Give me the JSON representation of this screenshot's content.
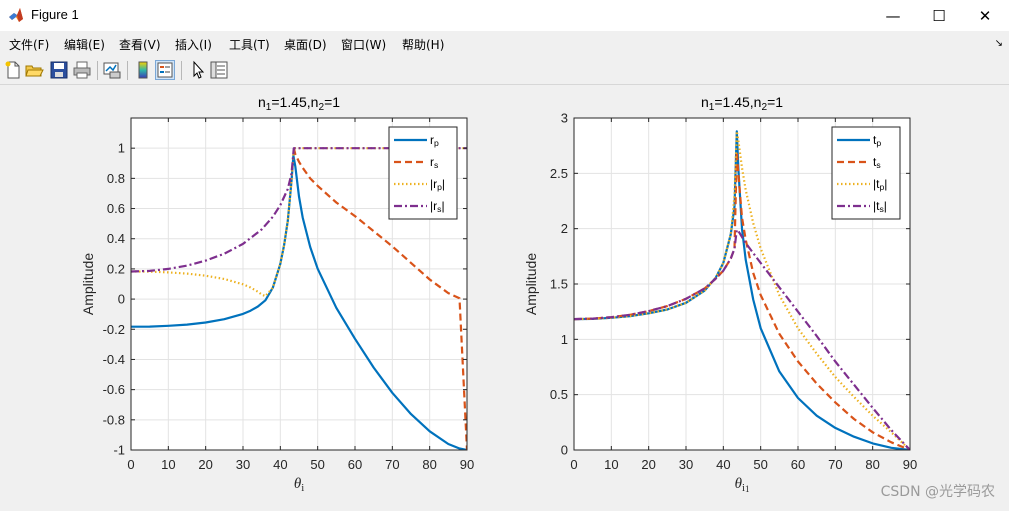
{
  "window": {
    "title": "Figure 1",
    "minimize_glyph": "—",
    "maximize_glyph": "☐",
    "close_glyph": "✕"
  },
  "menubar": {
    "items": [
      "文件(F)",
      "编辑(E)",
      "查看(V)",
      "插入(I)",
      "工具(T)",
      "桌面(D)",
      "窗口(W)",
      "帮助(H)"
    ],
    "collapse_glyph": "↘"
  },
  "toolbar": {
    "buttons": [
      "new-figure-icon",
      "open-file-icon",
      "save-icon",
      "print-icon",
      "link-plot-icon",
      "insert-colorbar-icon",
      "insert-legend-icon",
      "edit-plot-arrow-icon",
      "property-inspector-icon"
    ],
    "active": "insert-legend-icon"
  },
  "watermark": "CSDN @光学码农",
  "chart_data": [
    {
      "type": "line",
      "title": {
        "text": "n=1.45,n=1",
        "rich": [
          [
            "n",
            ""
          ],
          [
            "1",
            "sub"
          ],
          [
            "=1.45,n",
            ""
          ],
          [
            "2",
            "sub"
          ],
          [
            "=1",
            ""
          ]
        ]
      },
      "xlabel": {
        "rich": [
          [
            "θ",
            "italic"
          ],
          [
            "i",
            "sub"
          ]
        ]
      },
      "ylabel": "Amplitude",
      "xlim": [
        0,
        90
      ],
      "ylim": [
        -1,
        1.2
      ],
      "xticks": [
        0,
        10,
        20,
        30,
        40,
        50,
        60,
        70,
        80,
        90
      ],
      "yticks": [
        -1,
        -0.8,
        -0.6,
        -0.4,
        -0.2,
        0,
        0.2,
        0.4,
        0.6,
        0.8,
        1
      ],
      "ytick_labels": [
        "-1",
        "-0.8",
        "-0.6",
        "-0.4",
        "-0.2",
        "0",
        "0.2",
        "0.4",
        "0.6",
        "0.8",
        "1"
      ],
      "grid": true,
      "legend": "top-right",
      "series": [
        {
          "name": "rp",
          "legend_rich": [
            [
              "r",
              ""
            ],
            [
              "p",
              "sub"
            ]
          ],
          "color": "#0072bd",
          "style": "solid",
          "x": [
            0,
            5,
            10,
            15,
            20,
            25,
            30,
            32,
            34,
            36,
            38,
            40,
            41,
            42,
            43,
            43.5,
            44,
            45,
            46,
            48,
            50,
            55,
            60,
            65,
            70,
            75,
            80,
            85,
            88,
            90
          ],
          "y": [
            -0.183,
            -0.182,
            -0.177,
            -0.169,
            -0.155,
            -0.133,
            -0.098,
            -0.077,
            -0.049,
            -0.008,
            0.077,
            0.233,
            0.357,
            0.519,
            0.781,
            0.95,
            0.88,
            0.68,
            0.54,
            0.345,
            0.201,
            -0.058,
            -0.263,
            -0.454,
            -0.621,
            -0.762,
            -0.876,
            -0.96,
            -0.99,
            -1
          ]
        },
        {
          "name": "rs",
          "legend_rich": [
            [
              "r",
              ""
            ],
            [
              "s",
              "sub"
            ]
          ],
          "color": "#d95319",
          "style": "dashed",
          "x": [
            43.6,
            44,
            45,
            46,
            48,
            50,
            55,
            60,
            65,
            70,
            75,
            80,
            85,
            88,
            90
          ],
          "y": [
            1,
            0.96,
            0.91,
            0.87,
            0.8,
            0.75,
            0.64,
            0.55,
            0.45,
            0.35,
            0.24,
            0.13,
            0.04,
            0.005,
            -1
          ]
        },
        {
          "name": "|rp|",
          "legend_rich": [
            [
              "|r",
              ""
            ],
            [
              "p",
              "sub"
            ],
            [
              "|",
              ""
            ]
          ],
          "color": "#edb120",
          "style": "dotted",
          "x": [
            0,
            5,
            10,
            15,
            20,
            25,
            30,
            32,
            34,
            35,
            36,
            38,
            40,
            41,
            42,
            43,
            43.6,
            44,
            90
          ],
          "y": [
            0.183,
            0.182,
            0.177,
            0.169,
            0.155,
            0.133,
            0.098,
            0.077,
            0.049,
            0.03,
            0.02,
            0.077,
            0.233,
            0.357,
            0.519,
            0.781,
            1,
            1,
            1
          ]
        },
        {
          "name": "|rs|",
          "legend_rich": [
            [
              "|r",
              ""
            ],
            [
              "s",
              "sub"
            ],
            [
              "|",
              ""
            ]
          ],
          "color": "#7e2f8e",
          "style": "dashdot",
          "x": [
            0,
            5,
            10,
            15,
            20,
            25,
            30,
            35,
            38,
            40,
            42,
            43,
            43.6,
            44,
            90
          ],
          "y": [
            0.183,
            0.187,
            0.2,
            0.222,
            0.255,
            0.301,
            0.366,
            0.462,
            0.546,
            0.622,
            0.73,
            0.83,
            1,
            1,
            1
          ]
        }
      ]
    },
    {
      "type": "line",
      "title": {
        "text": "n=1.45,n=1",
        "rich": [
          [
            "n",
            ""
          ],
          [
            "1",
            "sub"
          ],
          [
            "=1.45,n",
            ""
          ],
          [
            "2",
            "sub"
          ],
          [
            "=1",
            ""
          ]
        ]
      },
      "xlabel": {
        "rich": [
          [
            "θ",
            "italic"
          ],
          [
            "i",
            "sub"
          ],
          [
            "1",
            "subsub"
          ]
        ]
      },
      "ylabel": "Amplitude",
      "xlim": [
        0,
        90
      ],
      "ylim": [
        0,
        3
      ],
      "xticks": [
        0,
        10,
        20,
        30,
        40,
        50,
        60,
        70,
        80,
        90
      ],
      "yticks": [
        0,
        0.5,
        1,
        1.5,
        2,
        2.5,
        3
      ],
      "ytick_labels": [
        "0",
        "0.5",
        "1",
        "1.5",
        "2",
        "2.5",
        "3"
      ],
      "grid": true,
      "legend": "top-right",
      "series": [
        {
          "name": "tp",
          "legend_rich": [
            [
              "t",
              ""
            ],
            [
              "p",
              "sub"
            ]
          ],
          "color": "#0072bd",
          "style": "solid",
          "x": [
            0,
            5,
            10,
            15,
            20,
            25,
            30,
            35,
            38,
            40,
            42,
            43,
            43.6,
            44,
            45,
            46,
            48,
            50,
            55,
            60,
            65,
            70,
            75,
            80,
            85,
            90
          ],
          "y": [
            1.183,
            1.185,
            1.195,
            1.21,
            1.235,
            1.27,
            1.33,
            1.44,
            1.56,
            1.69,
            1.95,
            2.2,
            2.88,
            2.55,
            2.0,
            1.72,
            1.36,
            1.1,
            0.71,
            0.47,
            0.31,
            0.2,
            0.12,
            0.06,
            0.02,
            0
          ]
        },
        {
          "name": "ts",
          "legend_rich": [
            [
              "t",
              ""
            ],
            [
              "s",
              "sub"
            ]
          ],
          "color": "#d95319",
          "style": "dashed",
          "x": [
            0,
            5,
            10,
            15,
            20,
            25,
            30,
            35,
            38,
            40,
            42,
            43,
            43.6,
            44,
            45,
            46,
            48,
            50,
            55,
            60,
            65,
            70,
            75,
            80,
            85,
            90
          ],
          "y": [
            1.183,
            1.187,
            1.2,
            1.222,
            1.255,
            1.3,
            1.366,
            1.46,
            1.55,
            1.62,
            1.73,
            1.82,
            2.7,
            2.5,
            2.1,
            1.9,
            1.6,
            1.4,
            1.05,
            0.8,
            0.6,
            0.43,
            0.28,
            0.16,
            0.07,
            0
          ]
        },
        {
          "name": "|tp|",
          "legend_rich": [
            [
              "|t",
              ""
            ],
            [
              "p",
              "sub"
            ],
            [
              "|",
              ""
            ]
          ],
          "color": "#edb120",
          "style": "dotted",
          "x": [
            0,
            5,
            10,
            15,
            20,
            25,
            30,
            35,
            38,
            40,
            42,
            43,
            43.6,
            44,
            45,
            46,
            48,
            50,
            55,
            60,
            65,
            70,
            75,
            80,
            85,
            90
          ],
          "y": [
            1.183,
            1.185,
            1.195,
            1.21,
            1.235,
            1.27,
            1.33,
            1.44,
            1.56,
            1.69,
            1.95,
            2.3,
            2.88,
            2.8,
            2.55,
            2.35,
            2.05,
            1.82,
            1.4,
            1.1,
            0.87,
            0.66,
            0.48,
            0.31,
            0.16,
            0
          ]
        },
        {
          "name": "|ts|",
          "legend_rich": [
            [
              "|t",
              ""
            ],
            [
              "s",
              "sub"
            ],
            [
              "|",
              ""
            ]
          ],
          "color": "#7e2f8e",
          "style": "dashdot",
          "x": [
            0,
            5,
            10,
            15,
            20,
            25,
            30,
            35,
            38,
            40,
            42,
            43,
            43.6,
            44,
            46,
            50,
            55,
            60,
            65,
            70,
            75,
            80,
            85,
            90
          ],
          "y": [
            1.183,
            1.187,
            1.2,
            1.222,
            1.255,
            1.3,
            1.366,
            1.46,
            1.55,
            1.62,
            1.73,
            1.82,
            1.99,
            1.98,
            1.87,
            1.69,
            1.47,
            1.25,
            1.03,
            0.8,
            0.59,
            0.38,
            0.18,
            0
          ]
        }
      ]
    }
  ]
}
